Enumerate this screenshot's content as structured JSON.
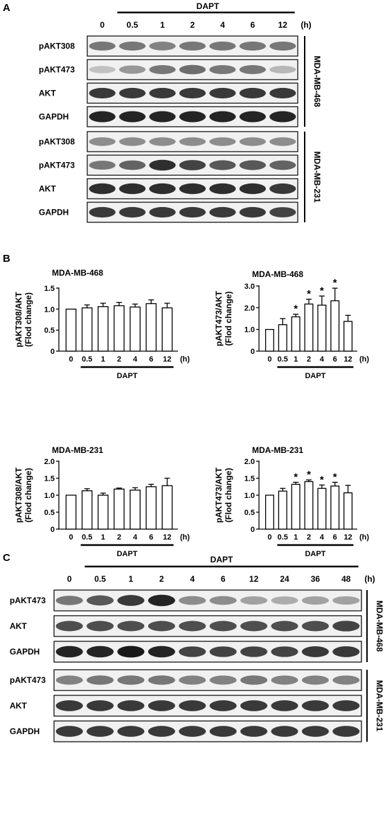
{
  "panel_labels": {
    "a": "A",
    "b": "B",
    "c": "C"
  },
  "blot_a": {
    "treatment": "DAPT",
    "time_unit": "(h)",
    "lanes": [
      "0",
      "0.5",
      "1",
      "2",
      "4",
      "6",
      "12"
    ],
    "groups": [
      {
        "cell_line": "MDA-MB-468",
        "rows": [
          {
            "label": "pAKT308",
            "intensity": [
              0.55,
              0.55,
              0.5,
              0.55,
              0.55,
              0.55,
              0.55
            ]
          },
          {
            "label": "pAKT473",
            "intensity": [
              0.2,
              0.4,
              0.55,
              0.6,
              0.55,
              0.55,
              0.25
            ]
          },
          {
            "label": "AKT",
            "intensity": [
              0.85,
              0.85,
              0.85,
              0.85,
              0.85,
              0.85,
              0.85
            ]
          },
          {
            "label": "GAPDH",
            "intensity": [
              0.95,
              0.95,
              0.95,
              0.95,
              0.95,
              0.95,
              0.95
            ]
          }
        ]
      },
      {
        "cell_line": "MDA-MB-231",
        "rows": [
          {
            "label": "pAKT308",
            "intensity": [
              0.45,
              0.45,
              0.45,
              0.45,
              0.45,
              0.45,
              0.45
            ]
          },
          {
            "label": "pAKT473",
            "intensity": [
              0.55,
              0.65,
              0.9,
              0.8,
              0.7,
              0.7,
              0.65
            ]
          },
          {
            "label": "AKT",
            "intensity": [
              0.9,
              0.9,
              0.9,
              0.9,
              0.9,
              0.9,
              0.85
            ]
          },
          {
            "label": "GAPDH",
            "intensity": [
              0.85,
              0.85,
              0.85,
              0.85,
              0.85,
              0.85,
              0.8
            ]
          }
        ]
      }
    ]
  },
  "blot_c": {
    "treatment": "DAPT",
    "time_unit": "(h)",
    "lanes": [
      "0",
      "0.5",
      "1",
      "2",
      "4",
      "6",
      "12",
      "24",
      "36",
      "48"
    ],
    "groups": [
      {
        "cell_line": "MDA-MB-468",
        "rows": [
          {
            "label": "pAKT473",
            "intensity": [
              0.55,
              0.7,
              0.85,
              0.95,
              0.45,
              0.45,
              0.35,
              0.3,
              0.35,
              0.35
            ]
          },
          {
            "label": "AKT",
            "intensity": [
              0.75,
              0.75,
              0.75,
              0.75,
              0.75,
              0.75,
              0.75,
              0.75,
              0.75,
              0.8
            ]
          },
          {
            "label": "GAPDH",
            "intensity": [
              0.95,
              0.95,
              1.0,
              0.95,
              0.8,
              0.8,
              0.8,
              0.8,
              0.85,
              0.85
            ]
          }
        ]
      },
      {
        "cell_line": "MDA-MB-231",
        "rows": [
          {
            "label": "pAKT473",
            "intensity": [
              0.5,
              0.55,
              0.55,
              0.55,
              0.5,
              0.5,
              0.55,
              0.5,
              0.5,
              0.5
            ]
          },
          {
            "label": "AKT",
            "intensity": [
              0.85,
              0.85,
              0.85,
              0.85,
              0.85,
              0.85,
              0.85,
              0.85,
              0.85,
              0.85
            ]
          },
          {
            "label": "GAPDH",
            "intensity": [
              0.85,
              0.85,
              0.85,
              0.85,
              0.85,
              0.85,
              0.85,
              0.85,
              0.85,
              0.85
            ]
          }
        ]
      }
    ]
  },
  "chart_data": [
    {
      "type": "bar",
      "title": "MDA-MB-468",
      "ylabel_line1": "pAKT308/AKT",
      "ylabel_line2": "(Flod change)",
      "xlabel": "DAPT",
      "unit": "(h)",
      "categories": [
        "0",
        "0.5",
        "1",
        "2",
        "4",
        "6",
        "12"
      ],
      "values": [
        1.0,
        1.03,
        1.06,
        1.08,
        1.05,
        1.13,
        1.03
      ],
      "errors": [
        0.0,
        0.07,
        0.08,
        0.08,
        0.07,
        0.09,
        0.11
      ],
      "significant": [
        false,
        false,
        false,
        false,
        false,
        false,
        false
      ],
      "significance_mark": "*",
      "ylim": [
        0,
        1.5
      ],
      "yticks": [
        "0",
        "0.5",
        "1.0",
        "1.5"
      ]
    },
    {
      "type": "bar",
      "title": "MDA-MB-468",
      "ylabel_line1": "pAKT473/AKT",
      "ylabel_line2": "(Flod change)",
      "xlabel": "DAPT",
      "unit": "(h)",
      "categories": [
        "0",
        "0.5",
        "1",
        "2",
        "4",
        "6",
        "12"
      ],
      "values": [
        1.0,
        1.22,
        1.58,
        2.17,
        2.12,
        2.32,
        1.37
      ],
      "errors": [
        0.0,
        0.28,
        0.12,
        0.22,
        0.42,
        0.58,
        0.28
      ],
      "significant": [
        false,
        false,
        true,
        true,
        true,
        true,
        false
      ],
      "significance_mark": "*",
      "ylim": [
        0,
        3.0
      ],
      "yticks": [
        "0",
        "1.0",
        "2.0",
        "3.0"
      ]
    },
    {
      "type": "bar",
      "title": "MDA-MB-231",
      "ylabel_line1": "pAKT308/AKT",
      "ylabel_line2": "(Flod change)",
      "xlabel": "DAPT",
      "unit": "(h)",
      "categories": [
        "0",
        "0.5",
        "1",
        "2",
        "4",
        "6",
        "12"
      ],
      "values": [
        1.0,
        1.13,
        1.0,
        1.18,
        1.15,
        1.25,
        1.28
      ],
      "errors": [
        0.0,
        0.06,
        0.06,
        0.03,
        0.07,
        0.07,
        0.22
      ],
      "significant": [
        false,
        false,
        false,
        false,
        false,
        false,
        false
      ],
      "significance_mark": "*",
      "ylim": [
        0,
        2.0
      ],
      "yticks": [
        "0",
        "0.5",
        "1.0",
        "1.5",
        "2.0"
      ]
    },
    {
      "type": "bar",
      "title": "MDA-MB-231",
      "ylabel_line1": "pAKT473/AKT",
      "ylabel_line2": "(Flod change)",
      "xlabel": "DAPT",
      "unit": "(h)",
      "categories": [
        "0",
        "0.5",
        "1",
        "2",
        "4",
        "6",
        "12"
      ],
      "values": [
        1.0,
        1.12,
        1.32,
        1.4,
        1.2,
        1.27,
        1.07
      ],
      "errors": [
        0.0,
        0.08,
        0.06,
        0.05,
        0.1,
        0.11,
        0.22
      ],
      "significant": [
        false,
        false,
        true,
        true,
        true,
        true,
        false
      ],
      "significance_mark": "*",
      "ylim": [
        0,
        2.0
      ],
      "yticks": [
        "0",
        "0.5",
        "1.0",
        "1.5",
        "2.0"
      ]
    }
  ]
}
